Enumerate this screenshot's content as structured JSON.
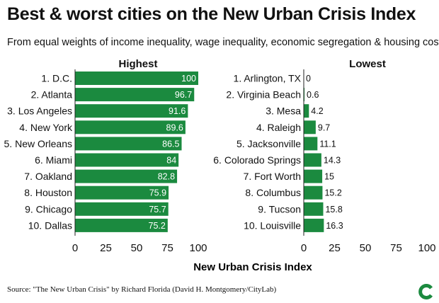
{
  "title": "Best & worst cities on the New Urban Crisis Index",
  "subtitle": "From equal weights of income inequality, wage inequality, economic segregation & housing costs.",
  "source": "Source: \"The New Urban Crisis\" by Richard Florida (David H. Montgomery/CityLab)",
  "xlabel": "New Urban Crisis Index",
  "colors": {
    "bar": "#1b8a3f",
    "text": "#111111",
    "logo": "#1b8a3f"
  },
  "chart_data": [
    {
      "type": "bar",
      "orientation": "horizontal",
      "title": "Highest",
      "categories": [
        "1. D.C.",
        "2. Atlanta",
        "3. Los Angeles",
        "4. New York",
        "5. New Orleans",
        "6. Miami",
        "7. Oakland",
        "8. Houston",
        "9. Chicago",
        "10. Dallas"
      ],
      "values": [
        100,
        96.7,
        91.6,
        89.6,
        86.5,
        84,
        82.8,
        75.9,
        75.7,
        75.2
      ],
      "labels": [
        "100",
        "96.7",
        "91.6",
        "89.6",
        "86.5",
        "84",
        "82.8",
        "75.9",
        "75.7",
        "75.2"
      ],
      "xlim": [
        0,
        100
      ],
      "xticks": [
        "0",
        "25",
        "50",
        "75",
        "100"
      ],
      "label_position": "inside"
    },
    {
      "type": "bar",
      "orientation": "horizontal",
      "title": "Lowest",
      "categories": [
        "1. Arlington, TX",
        "2. Virginia Beach",
        "3. Mesa",
        "4. Raleigh",
        "5. Jacksonville",
        "6. Colorado Springs",
        "7. Fort Worth",
        "8. Columbus",
        "9. Tucson",
        "10. Louisville"
      ],
      "values": [
        0,
        0.6,
        4.2,
        9.7,
        11.1,
        14.3,
        15,
        15.2,
        15.8,
        16.3
      ],
      "labels": [
        "0",
        "0.6",
        "4.2",
        "9.7",
        "11.1",
        "14.3",
        "15",
        "15.2",
        "15.8",
        "16.3"
      ],
      "xlim": [
        0,
        100
      ],
      "xticks": [
        "0",
        "25",
        "50",
        "75",
        "100"
      ],
      "label_position": "outside"
    }
  ]
}
